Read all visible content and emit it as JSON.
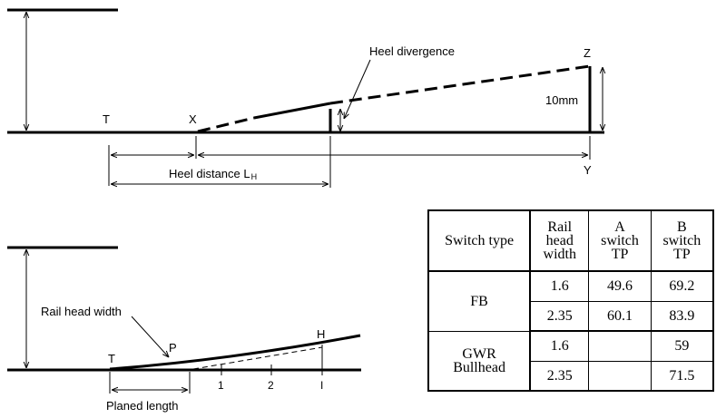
{
  "top_diagram": {
    "labels": {
      "t": "T",
      "x": "X",
      "z": "Z",
      "y": "Y",
      "heel_divergence": "Heel divergence",
      "offset": "10mm",
      "heel_distance": "Heel distance L",
      "heel_distance_sub": "H"
    }
  },
  "bottom_diagram": {
    "labels": {
      "rail_head_width": "Rail head width",
      "t": "T",
      "p": "P",
      "h": "H",
      "tick_1": "1",
      "tick_2": "2",
      "tick_i": "I",
      "planed_length": "Planed length"
    }
  },
  "table": {
    "headers": {
      "switch_type": "Switch type",
      "rail_head_width": [
        "Rail",
        "head",
        "width"
      ],
      "a_switch_tp": [
        "A",
        "switch",
        "TP"
      ],
      "b_switch_tp": [
        "B",
        "switch",
        "TP"
      ]
    },
    "groups": [
      {
        "type": "FB",
        "rows": [
          {
            "width": "1.6",
            "a": "49.6",
            "b": "69.2"
          },
          {
            "width": "2.35",
            "a": "60.1",
            "b": "83.9"
          }
        ]
      },
      {
        "type": [
          "GWR",
          "Bullhead"
        ],
        "rows": [
          {
            "width": "1.6",
            "a": "",
            "b": "59"
          },
          {
            "width": "2.35",
            "a": "",
            "b": "71.5"
          }
        ]
      }
    ]
  }
}
